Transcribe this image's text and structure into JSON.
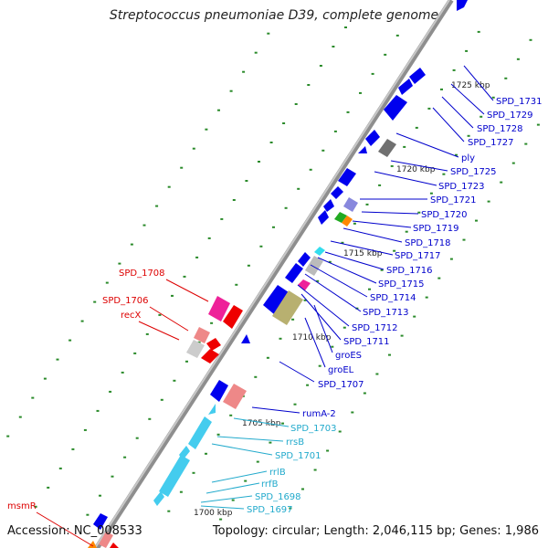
{
  "header": {
    "title": "Streptococcus pneumoniae D39, complete genome"
  },
  "footer": {
    "accession": "Accession: NC_008533",
    "summary": "Topology: circular; Length: 2,046,115 bp; Genes: 1,986"
  },
  "colors": {
    "forward_gene": "#0000ee",
    "rrna": "#44ccee",
    "rrna_label": "#22aacc",
    "right_label": "#0000cc",
    "left_label": "#dd0000",
    "backbone": "#9a9a9a",
    "gc_dots": "#2a8a2a"
  },
  "map": {
    "kbp_ticks": [
      "1700 kbp",
      "1705 kbp",
      "1710 kbp",
      "1715 kbp",
      "1720 kbp",
      "1725 kbp"
    ],
    "right_labels": [
      {
        "text": "SPD_1731",
        "kind": "gene"
      },
      {
        "text": "SPD_1729",
        "kind": "gene"
      },
      {
        "text": "SPD_1728",
        "kind": "gene"
      },
      {
        "text": "SPD_1727",
        "kind": "gene"
      },
      {
        "text": "ply",
        "kind": "gene"
      },
      {
        "text": "SPD_1725",
        "kind": "gene"
      },
      {
        "text": "SPD_1723",
        "kind": "gene"
      },
      {
        "text": "SPD_1721",
        "kind": "gene"
      },
      {
        "text": "SPD_1720",
        "kind": "gene"
      },
      {
        "text": "SPD_1719",
        "kind": "gene"
      },
      {
        "text": "SPD_1718",
        "kind": "gene"
      },
      {
        "text": "SPD_1717",
        "kind": "gene"
      },
      {
        "text": "SPD_1716",
        "kind": "gene"
      },
      {
        "text": "SPD_1715",
        "kind": "gene"
      },
      {
        "text": "SPD_1714",
        "kind": "gene"
      },
      {
        "text": "SPD_1713",
        "kind": "gene"
      },
      {
        "text": "SPD_1712",
        "kind": "gene"
      },
      {
        "text": "SPD_1711",
        "kind": "gene"
      },
      {
        "text": "groES",
        "kind": "gene"
      },
      {
        "text": "groEL",
        "kind": "gene"
      },
      {
        "text": "SPD_1707",
        "kind": "gene"
      },
      {
        "text": "rumA-2",
        "kind": "gene"
      },
      {
        "text": "SPD_1703",
        "kind": "rna"
      },
      {
        "text": "rrsB",
        "kind": "rna"
      },
      {
        "text": "SPD_1701",
        "kind": "rna"
      },
      {
        "text": "rrlB",
        "kind": "rna"
      },
      {
        "text": "rrfB",
        "kind": "rna"
      },
      {
        "text": "SPD_1698",
        "kind": "rna"
      },
      {
        "text": "SPD_1697",
        "kind": "rna"
      }
    ],
    "left_labels": [
      "SPD_1708",
      "SPD_1706",
      "recX",
      "msmR"
    ]
  }
}
